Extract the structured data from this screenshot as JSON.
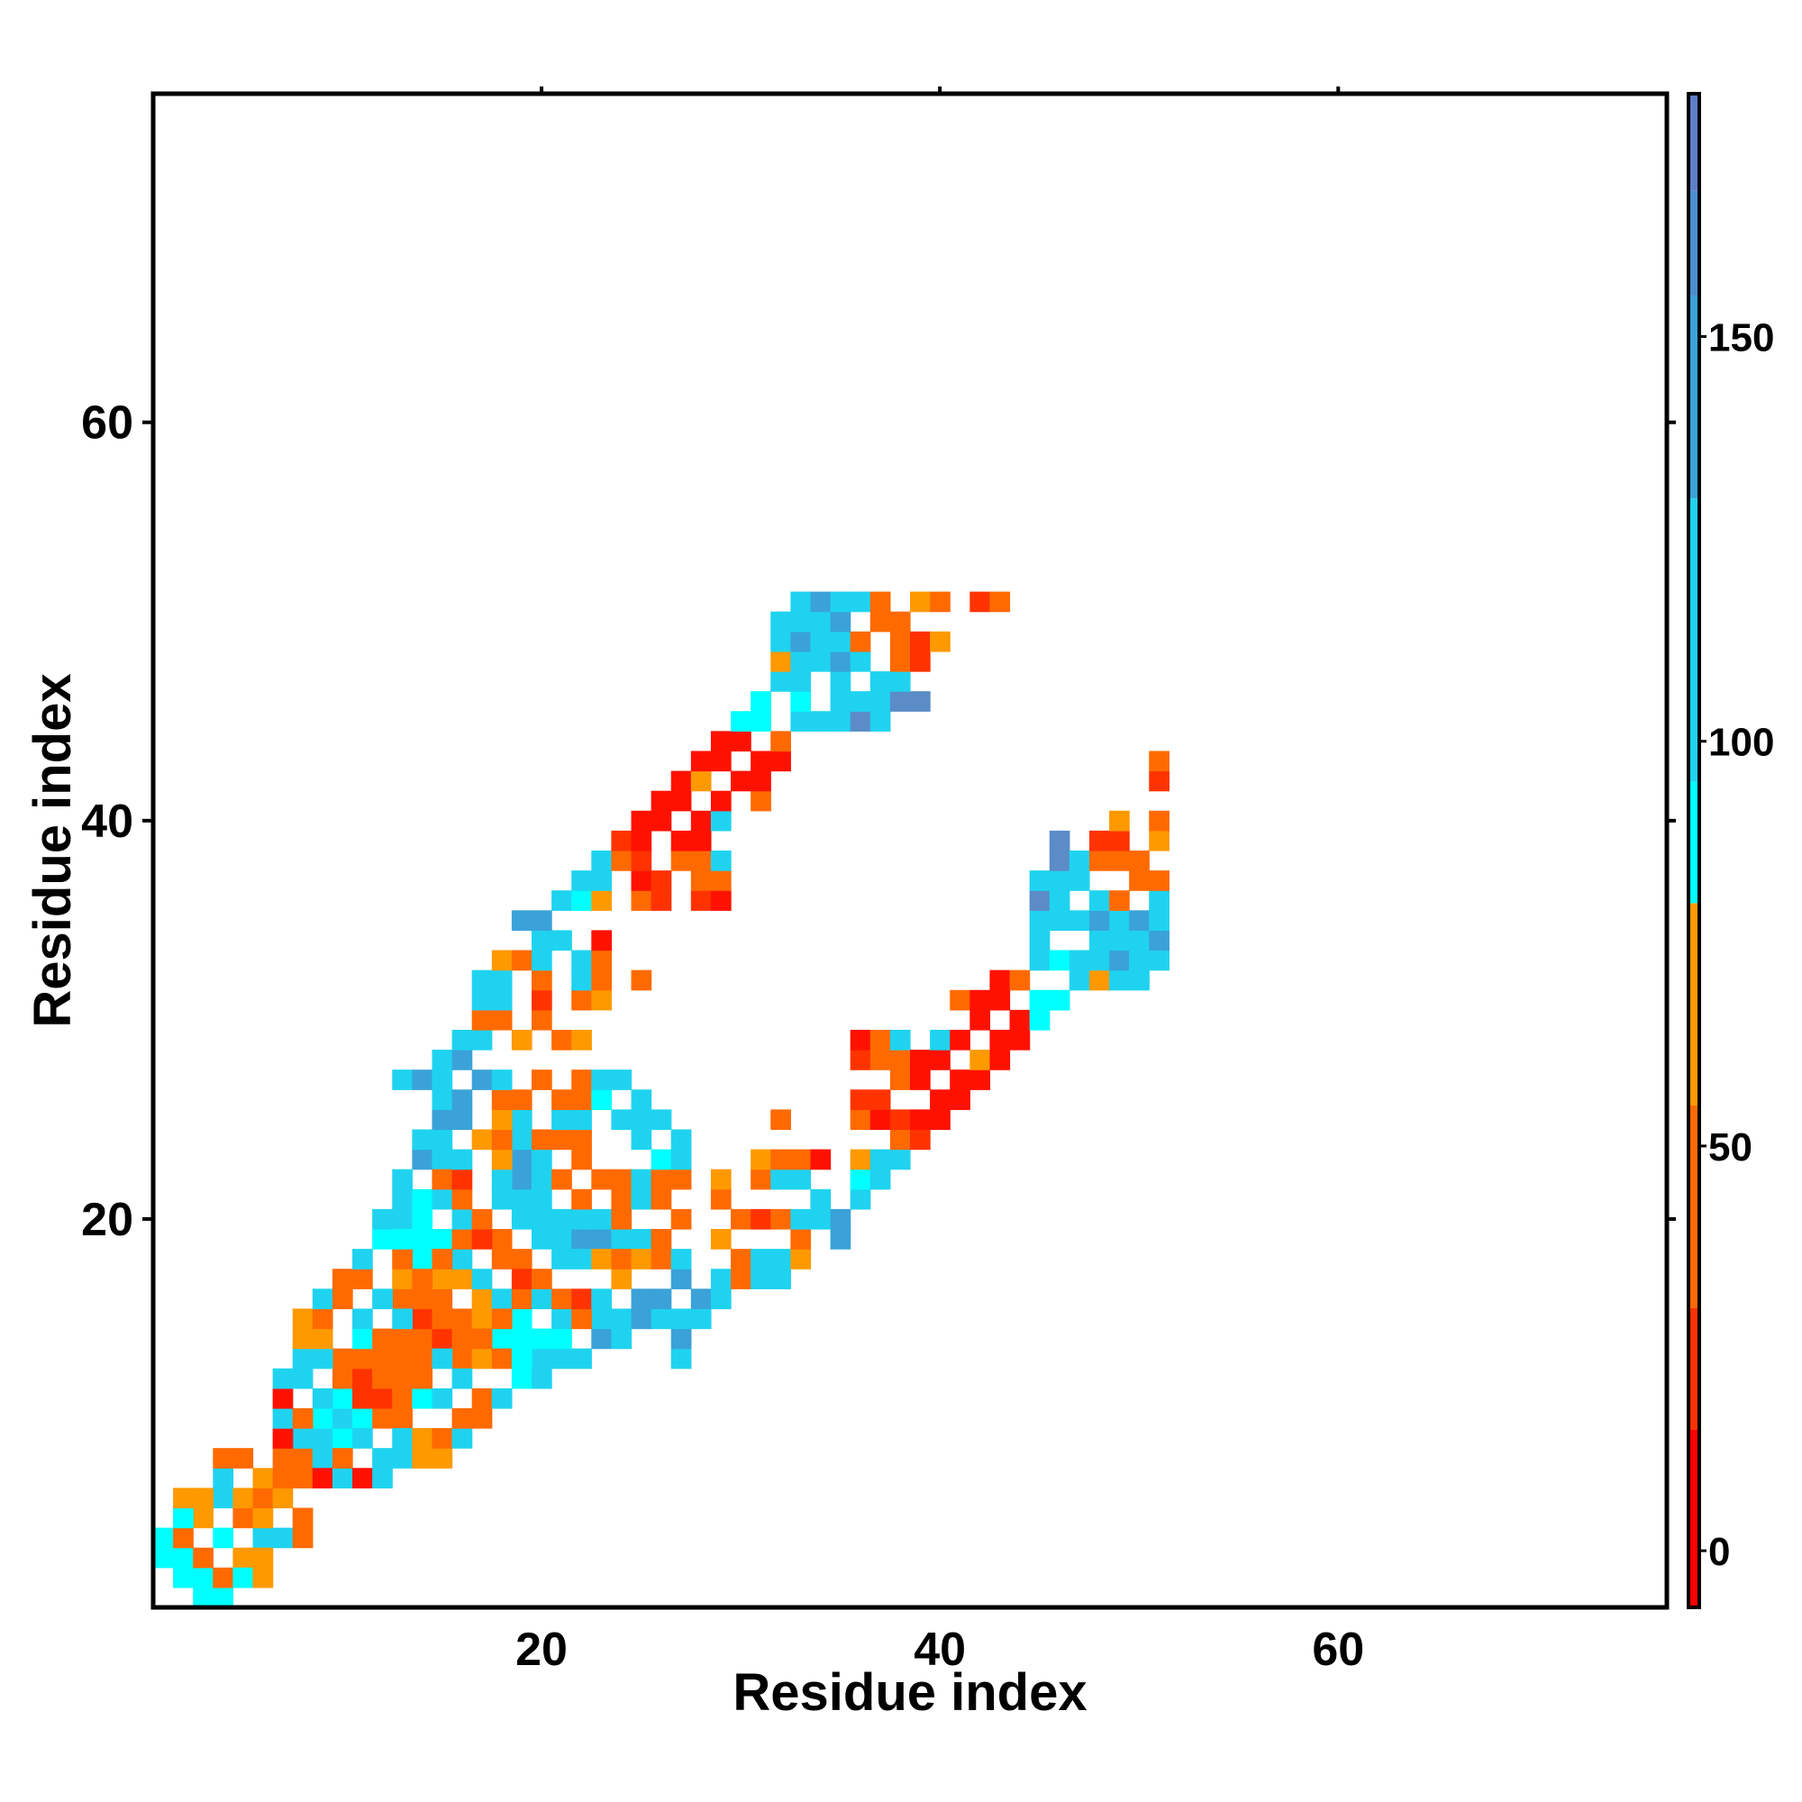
{
  "chart_data": {
    "type": "heatmap",
    "xlabel": "Residue index",
    "ylabel": "Residue index",
    "xlim": [
      1,
      76
    ],
    "ylim": [
      1,
      76
    ],
    "xticks": [
      20,
      40,
      60
    ],
    "xtick_labels": [
      "20",
      "40",
      "60"
    ],
    "yticks": [
      20,
      40,
      60
    ],
    "ytick_labels": [
      "20",
      "40",
      "60"
    ],
    "grid": false,
    "legend": "right (color bar)",
    "colorbar": {
      "range": [
        -7,
        180
      ],
      "ticks": [
        0,
        50,
        100,
        150
      ],
      "tick_labels": [
        "0",
        "50",
        "100",
        "150"
      ],
      "bins": [
        {
          "from": -7,
          "to": 15,
          "color": "#ff0000"
        },
        {
          "from": 15,
          "to": 30,
          "color": "#ff3300"
        },
        {
          "from": 30,
          "to": 55,
          "color": "#ff6a00"
        },
        {
          "from": 55,
          "to": 80,
          "color": "#ff9900"
        },
        {
          "from": 80,
          "to": 95,
          "color": "#00ffff"
        },
        {
          "from": 95,
          "to": 130,
          "color": "#1fd3f0"
        },
        {
          "from": 130,
          "to": 155,
          "color": "#3aa2d8"
        },
        {
          "from": 155,
          "to": 168,
          "color": "#4b8fd0"
        },
        {
          "from": 168,
          "to": 180,
          "color": "#5c7fc8"
        },
        {
          "from": 180,
          "to": 187,
          "color": "#ffffff"
        }
      ]
    },
    "colors": {
      "r": "#ff1100",
      "R": "#ff3300",
      "o": "#ff6a00",
      "O": "#ff9900",
      "c": "#00ffff",
      "C": "#1fd3f0",
      "b": "#3aa2d8",
      "B": "#5b8cc8"
    },
    "rows": [
      {
        "y": 2,
        "x0": 2,
        "cells": "cc"
      },
      {
        "y": 3,
        "x0": 1,
        "cells": "c.o.O"
      },
      {
        "y": 4,
        "x0": 1,
        "cells": "co.c.C"
      },
      {
        "y": 5,
        "x0": 2,
        "cells": "cc.oO"
      },
      {
        "y": 6,
        "x0": 2,
        "cells": "OO.oo"
      },
      {
        "y": 7,
        "x0": 4,
        "cells": "C.Oo"
      },
      {
        "y": 8,
        "x0": 4,
        "cells": "oo.ooC"
      },
      {
        "y": 9,
        "x0": 7,
        "cells": "r.Cc"
      },
      {
        "y": 10,
        "x0": 7,
        "cells": "Co.Ccoo"
      },
      {
        "y": 11,
        "x0": 7,
        "cells": "r.CcRR"
      },
      {
        "y": 12,
        "x0": 7,
        "cells": "CC.CCoo"
      },
      {
        "y": 13,
        "x0": 8,
        "cells": "CC.o.oo.oO..CC"
      },
      {
        "y": 14,
        "x0": 8,
        "cells": "OO.co.oRo.cc...b"
      },
      {
        "y": 15,
        "x0": 8,
        "cells": "Oo.C.CoooO.c...CCb"
      },
      {
        "y": 16,
        "x0": 9,
        "cells": "Co.CCoo.OC"
      },
      {
        "y": 17,
        "x0": 10,
        "cells": "oo.Co.CC"
      },
      {
        "y": 18,
        "x0": 11,
        "cells": "C.o.oC.oo.C"
      },
      {
        "y": 19,
        "x0": 12,
        "cells": "ccO.oRO.CCbbCC.........b"
      },
      {
        "y": 20,
        "x0": 12,
        "cells": "Ccc.Co.oCCCC"
      },
      {
        "y": 21,
        "x0": 13,
        "cells": "ccCo.C"
      },
      {
        "y": 22,
        "x0": 13,
        "cells": "C.oR.C.oo.ooC"
      },
      {
        "y": 23,
        "x0": 14,
        "cells": "ooC.Ooo"
      },
      {
        "y": 24,
        "x0": 14,
        "cells": "Cc.Oo.ooC"
      },
      {
        "y": 25,
        "x0": 15,
        "cells": "Ob.Oo.CC.CCC"
      },
      {
        "y": 26,
        "x0": 15,
        "cells": "Cb.oo.ooc"
      },
      {
        "y": 27,
        "x0": 13,
        "cells": "CbC.bC.o.oCC"
      },
      {
        "y": 28,
        "x0": 15,
        "cells": "Cb"
      },
      {
        "y": 29,
        "x0": 16,
        "cells": "CC.O.oO"
      },
      {
        "y": 30,
        "x0": 17,
        "cells": "oo.o"
      },
      {
        "y": 31,
        "x0": 17,
        "cells": "CC.R.oO"
      },
      {
        "y": 32,
        "x0": 17,
        "cells": "CC.o.Co.o"
      },
      {
        "y": 33,
        "x0": 18,
        "cells": "OoC.Co"
      },
      {
        "y": 34,
        "x0": 20,
        "cells": "CC.r"
      },
      {
        "y": 35,
        "x0": 20,
        "cells": "b"
      },
      {
        "y": 36,
        "x0": 21,
        "cells": "CcO.oR.Rr"
      },
      {
        "y": 37,
        "x0": 22,
        "cells": "CC.rR.oo"
      },
      {
        "y": 38,
        "x0": 23,
        "cells": "CoR.ooC"
      },
      {
        "y": 39,
        "x0": 24,
        "cells": "Rr.rr"
      },
      {
        "y": 40,
        "x0": 25,
        "cells": "rr.rC"
      },
      {
        "y": 41,
        "x0": 26,
        "cells": "rr.r.o"
      },
      {
        "y": 42,
        "x0": 27,
        "cells": "rO.rr"
      },
      {
        "y": 43,
        "x0": 28,
        "cells": "rr.rr"
      },
      {
        "y": 44,
        "x0": 29,
        "cells": "rr.o"
      },
      {
        "y": 45,
        "x0": 30,
        "cells": "cc.CCCBC"
      },
      {
        "y": 46,
        "x0": 31,
        "cells": "c.c.CCCBB"
      },
      {
        "y": 47,
        "x0": 32,
        "cells": "CC.C.CC"
      },
      {
        "y": 48,
        "x0": 32,
        "cells": "OCCbC.oR"
      },
      {
        "y": 49,
        "x0": 32,
        "cells": "CbCCo.oRO"
      },
      {
        "y": 50,
        "x0": 32,
        "cells": "CCCb.oo"
      },
      {
        "y": 51,
        "x0": 33,
        "cells": "CbCCo.Oo.Ro"
      }
    ]
  }
}
